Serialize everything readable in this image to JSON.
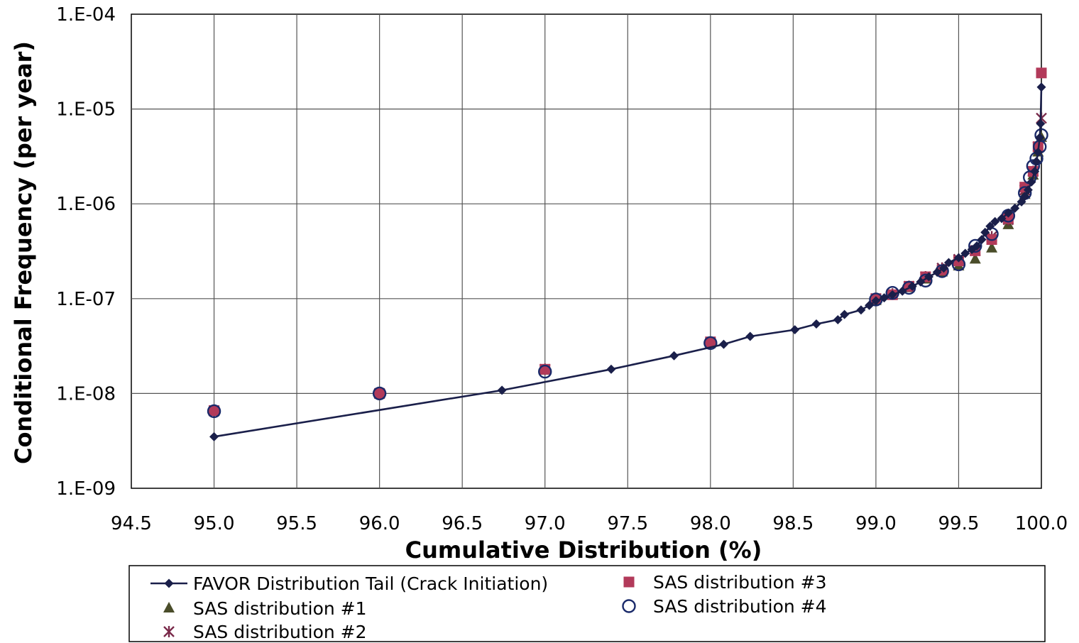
{
  "chart_data": {
    "type": "scatter",
    "title": "",
    "xlabel": "Cumulative Distribution (%)",
    "ylabel": "Conditional Frequency (per year)",
    "xlim": [
      94.5,
      100.0
    ],
    "ylim": [
      1e-09,
      0.0001
    ],
    "yscale": "log",
    "grid": true,
    "legend_position": "bottom",
    "x_ticks": [
      "94.5",
      "95.0",
      "95.5",
      "96.0",
      "96.5",
      "97.0",
      "97.5",
      "98.0",
      "98.5",
      "99.0",
      "99.5",
      "100.0"
    ],
    "y_ticks": [
      "1.E-09",
      "1.E-08",
      "1.E-07",
      "1.E-06",
      "1.E-05",
      "1.E-04"
    ],
    "series": [
      {
        "name": "FAVOR Distribution Tail (Crack Initiation)",
        "marker": "diamond-line",
        "color": "#1a1f4a",
        "points": [
          [
            95.0,
            3.5e-09
          ],
          [
            96.74,
            1.08e-08
          ],
          [
            97.4,
            1.8e-08
          ],
          [
            97.78,
            2.5e-08
          ],
          [
            98.08,
            3.3e-08
          ],
          [
            98.24,
            4e-08
          ],
          [
            98.51,
            4.7e-08
          ],
          [
            98.64,
            5.4e-08
          ],
          [
            98.77,
            6e-08
          ],
          [
            98.81,
            6.8e-08
          ],
          [
            98.91,
            7.6e-08
          ],
          [
            98.96,
            8.5e-08
          ],
          [
            99.0,
            9.5e-08
          ],
          [
            99.05,
            1.02e-07
          ],
          [
            99.1,
            1.1e-07
          ],
          [
            99.16,
            1.2e-07
          ],
          [
            99.22,
            1.35e-07
          ],
          [
            99.27,
            1.5e-07
          ],
          [
            99.32,
            1.7e-07
          ],
          [
            99.37,
            1.9e-07
          ],
          [
            99.41,
            2.1e-07
          ],
          [
            99.44,
            2.4e-07
          ],
          [
            99.5,
            2.7e-07
          ],
          [
            99.54,
            3e-07
          ],
          [
            99.58,
            3.3e-07
          ],
          [
            99.61,
            3.6e-07
          ],
          [
            99.64,
            4.2e-07
          ],
          [
            99.66,
            5e-07
          ],
          [
            99.69,
            5.8e-07
          ],
          [
            99.72,
            6.5e-07
          ],
          [
            99.76,
            7e-07
          ],
          [
            99.8,
            8e-07
          ],
          [
            99.84,
            9e-07
          ],
          [
            99.88,
            1.05e-06
          ],
          [
            99.9,
            1.2e-06
          ],
          [
            99.92,
            1.4e-06
          ],
          [
            99.94,
            1.7e-06
          ],
          [
            99.96,
            2.2e-06
          ],
          [
            99.97,
            2.8e-06
          ],
          [
            99.98,
            3.5e-06
          ],
          [
            99.99,
            5e-06
          ],
          [
            99.995,
            7e-06
          ],
          [
            100.0,
            1.7e-05
          ]
        ]
      },
      {
        "name": "SAS distribution #1",
        "marker": "triangle",
        "color": "#4a4d2a",
        "points": [
          [
            95.0,
            6.5e-09
          ],
          [
            96.0,
            1e-08
          ],
          [
            97.0,
            1.75e-08
          ],
          [
            98.0,
            3.4e-08
          ],
          [
            99.0,
            9.5e-08
          ],
          [
            99.1,
            1.1e-07
          ],
          [
            99.2,
            1.3e-07
          ],
          [
            99.3,
            1.6e-07
          ],
          [
            99.4,
            1.9e-07
          ],
          [
            99.5,
            2.2e-07
          ],
          [
            99.6,
            2.6e-07
          ],
          [
            99.7,
            3.4e-07
          ],
          [
            99.8,
            6e-07
          ],
          [
            99.9,
            1.25e-06
          ],
          [
            99.95,
            2e-06
          ],
          [
            99.98,
            3.5e-06
          ],
          [
            100.0,
            5e-06
          ]
        ]
      },
      {
        "name": "SAS distribution #2",
        "marker": "star",
        "color": "#7a2a4a",
        "points": [
          [
            95.0,
            6.5e-09
          ],
          [
            96.0,
            1e-08
          ],
          [
            97.0,
            1.8e-08
          ],
          [
            98.0,
            3.4e-08
          ],
          [
            99.0,
            1e-07
          ],
          [
            99.1,
            1.12e-07
          ],
          [
            99.2,
            1.35e-07
          ],
          [
            99.3,
            1.7e-07
          ],
          [
            99.4,
            2.1e-07
          ],
          [
            99.5,
            2.6e-07
          ],
          [
            99.6,
            3.2e-07
          ],
          [
            99.7,
            4.5e-07
          ],
          [
            99.8,
            6.8e-07
          ],
          [
            99.9,
            1.4e-06
          ],
          [
            99.95,
            2.2e-06
          ],
          [
            99.98,
            4e-06
          ],
          [
            100.0,
            8e-06
          ]
        ]
      },
      {
        "name": "SAS distribution #3",
        "marker": "square",
        "color": "#b23a5a",
        "points": [
          [
            95.0,
            6.6e-09
          ],
          [
            96.0,
            1e-08
          ],
          [
            97.0,
            1.8e-08
          ],
          [
            98.0,
            3.5e-08
          ],
          [
            99.0,
            1e-07
          ],
          [
            99.1,
            1.1e-07
          ],
          [
            99.2,
            1.35e-07
          ],
          [
            99.3,
            1.7e-07
          ],
          [
            99.4,
            2e-07
          ],
          [
            99.5,
            2.5e-07
          ],
          [
            99.6,
            3.2e-07
          ],
          [
            99.7,
            4.2e-07
          ],
          [
            99.8,
            7e-07
          ],
          [
            99.9,
            1.5e-06
          ],
          [
            99.95,
            2.2e-06
          ],
          [
            99.98,
            4e-06
          ],
          [
            100.0,
            2.4e-05
          ]
        ]
      },
      {
        "name": "SAS distribution #4",
        "marker": "circle",
        "color": "#1a2a6a",
        "points": [
          [
            95.0,
            6.5e-09
          ],
          [
            96.0,
            1e-08
          ],
          [
            97.0,
            1.7e-08
          ],
          [
            98.0,
            3.4e-08
          ],
          [
            99.0,
            9.8e-08
          ],
          [
            99.1,
            1.15e-07
          ],
          [
            99.2,
            1.3e-07
          ],
          [
            99.3,
            1.55e-07
          ],
          [
            99.4,
            1.95e-07
          ],
          [
            99.5,
            2.3e-07
          ],
          [
            99.6,
            3.6e-07
          ],
          [
            99.7,
            4.8e-07
          ],
          [
            99.8,
            7.5e-07
          ],
          [
            99.9,
            1.3e-06
          ],
          [
            99.93,
            1.9e-06
          ],
          [
            99.95,
            2.5e-06
          ],
          [
            99.97,
            3e-06
          ],
          [
            99.99,
            4e-06
          ],
          [
            100.0,
            5.3e-06
          ]
        ]
      }
    ]
  }
}
